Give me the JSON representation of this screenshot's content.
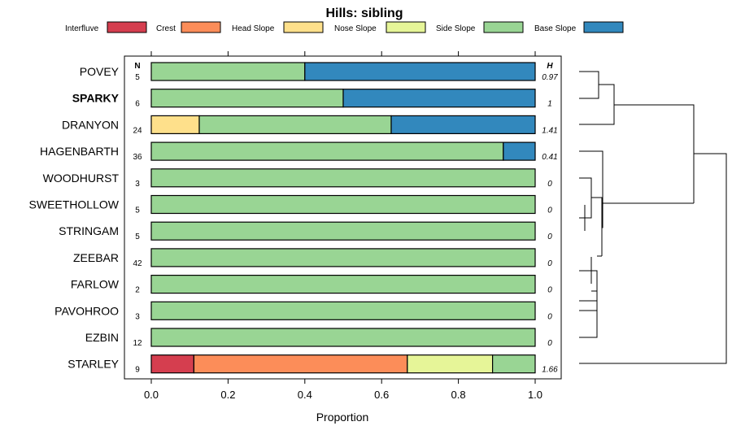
{
  "chart_data": {
    "type": "bar",
    "stacked": true,
    "orientation": "horizontal",
    "title": "Hills: sibling",
    "xlabel": "Proportion",
    "xlim": [
      0,
      1
    ],
    "xticks": [
      "0.0",
      "0.2",
      "0.4",
      "0.6",
      "0.8",
      "1.0"
    ],
    "n_header": "N",
    "h_header": "H",
    "legend": [
      {
        "name": "Interfluve",
        "color": "#d53e4f"
      },
      {
        "name": "Crest",
        "color": "#fc8d59"
      },
      {
        "name": "Head Slope",
        "color": "#fee08b"
      },
      {
        "name": "Nose Slope",
        "color": "#e6f598"
      },
      {
        "name": "Side Slope",
        "color": "#99d594"
      },
      {
        "name": "Base Slope",
        "color": "#3288bd"
      }
    ],
    "categories": [
      "POVEY",
      "SPARKY",
      "DRANYON",
      "HAGENBARTH",
      "WOODHURST",
      "SWEETHOLLOW",
      "STRINGAM",
      "ZEEBAR",
      "FARLOW",
      "PAVOHROO",
      "EZBIN",
      "STARLEY"
    ],
    "highlight": "SPARKY",
    "n": [
      "5",
      "6",
      "24",
      "36",
      "3",
      "5",
      "5",
      "42",
      "2",
      "3",
      "12",
      "9"
    ],
    "h": [
      "0.97",
      "1",
      "1.41",
      "0.41",
      "0",
      "0",
      "0",
      "0",
      "0",
      "0",
      "0",
      "1.66"
    ],
    "series": [
      {
        "name": "Interfluve",
        "values": [
          0,
          0,
          0,
          0,
          0,
          0,
          0,
          0,
          0,
          0,
          0,
          0.111
        ]
      },
      {
        "name": "Crest",
        "values": [
          0,
          0,
          0,
          0,
          0,
          0,
          0,
          0,
          0,
          0,
          0,
          0.556
        ]
      },
      {
        "name": "Head Slope",
        "values": [
          0,
          0,
          0.125,
          0,
          0,
          0,
          0,
          0,
          0,
          0,
          0,
          0
        ]
      },
      {
        "name": "Nose Slope",
        "values": [
          0,
          0,
          0,
          0,
          0,
          0,
          0,
          0,
          0,
          0,
          0,
          0.222
        ]
      },
      {
        "name": "Side Slope",
        "values": [
          0.4,
          0.5,
          0.5,
          0.917,
          1,
          1,
          1,
          1,
          1,
          1,
          1,
          0.111
        ]
      },
      {
        "name": "Base Slope",
        "values": [
          0.6,
          0.5,
          0.375,
          0.083,
          0,
          0,
          0,
          0,
          0,
          0,
          0,
          0
        ]
      }
    ]
  }
}
